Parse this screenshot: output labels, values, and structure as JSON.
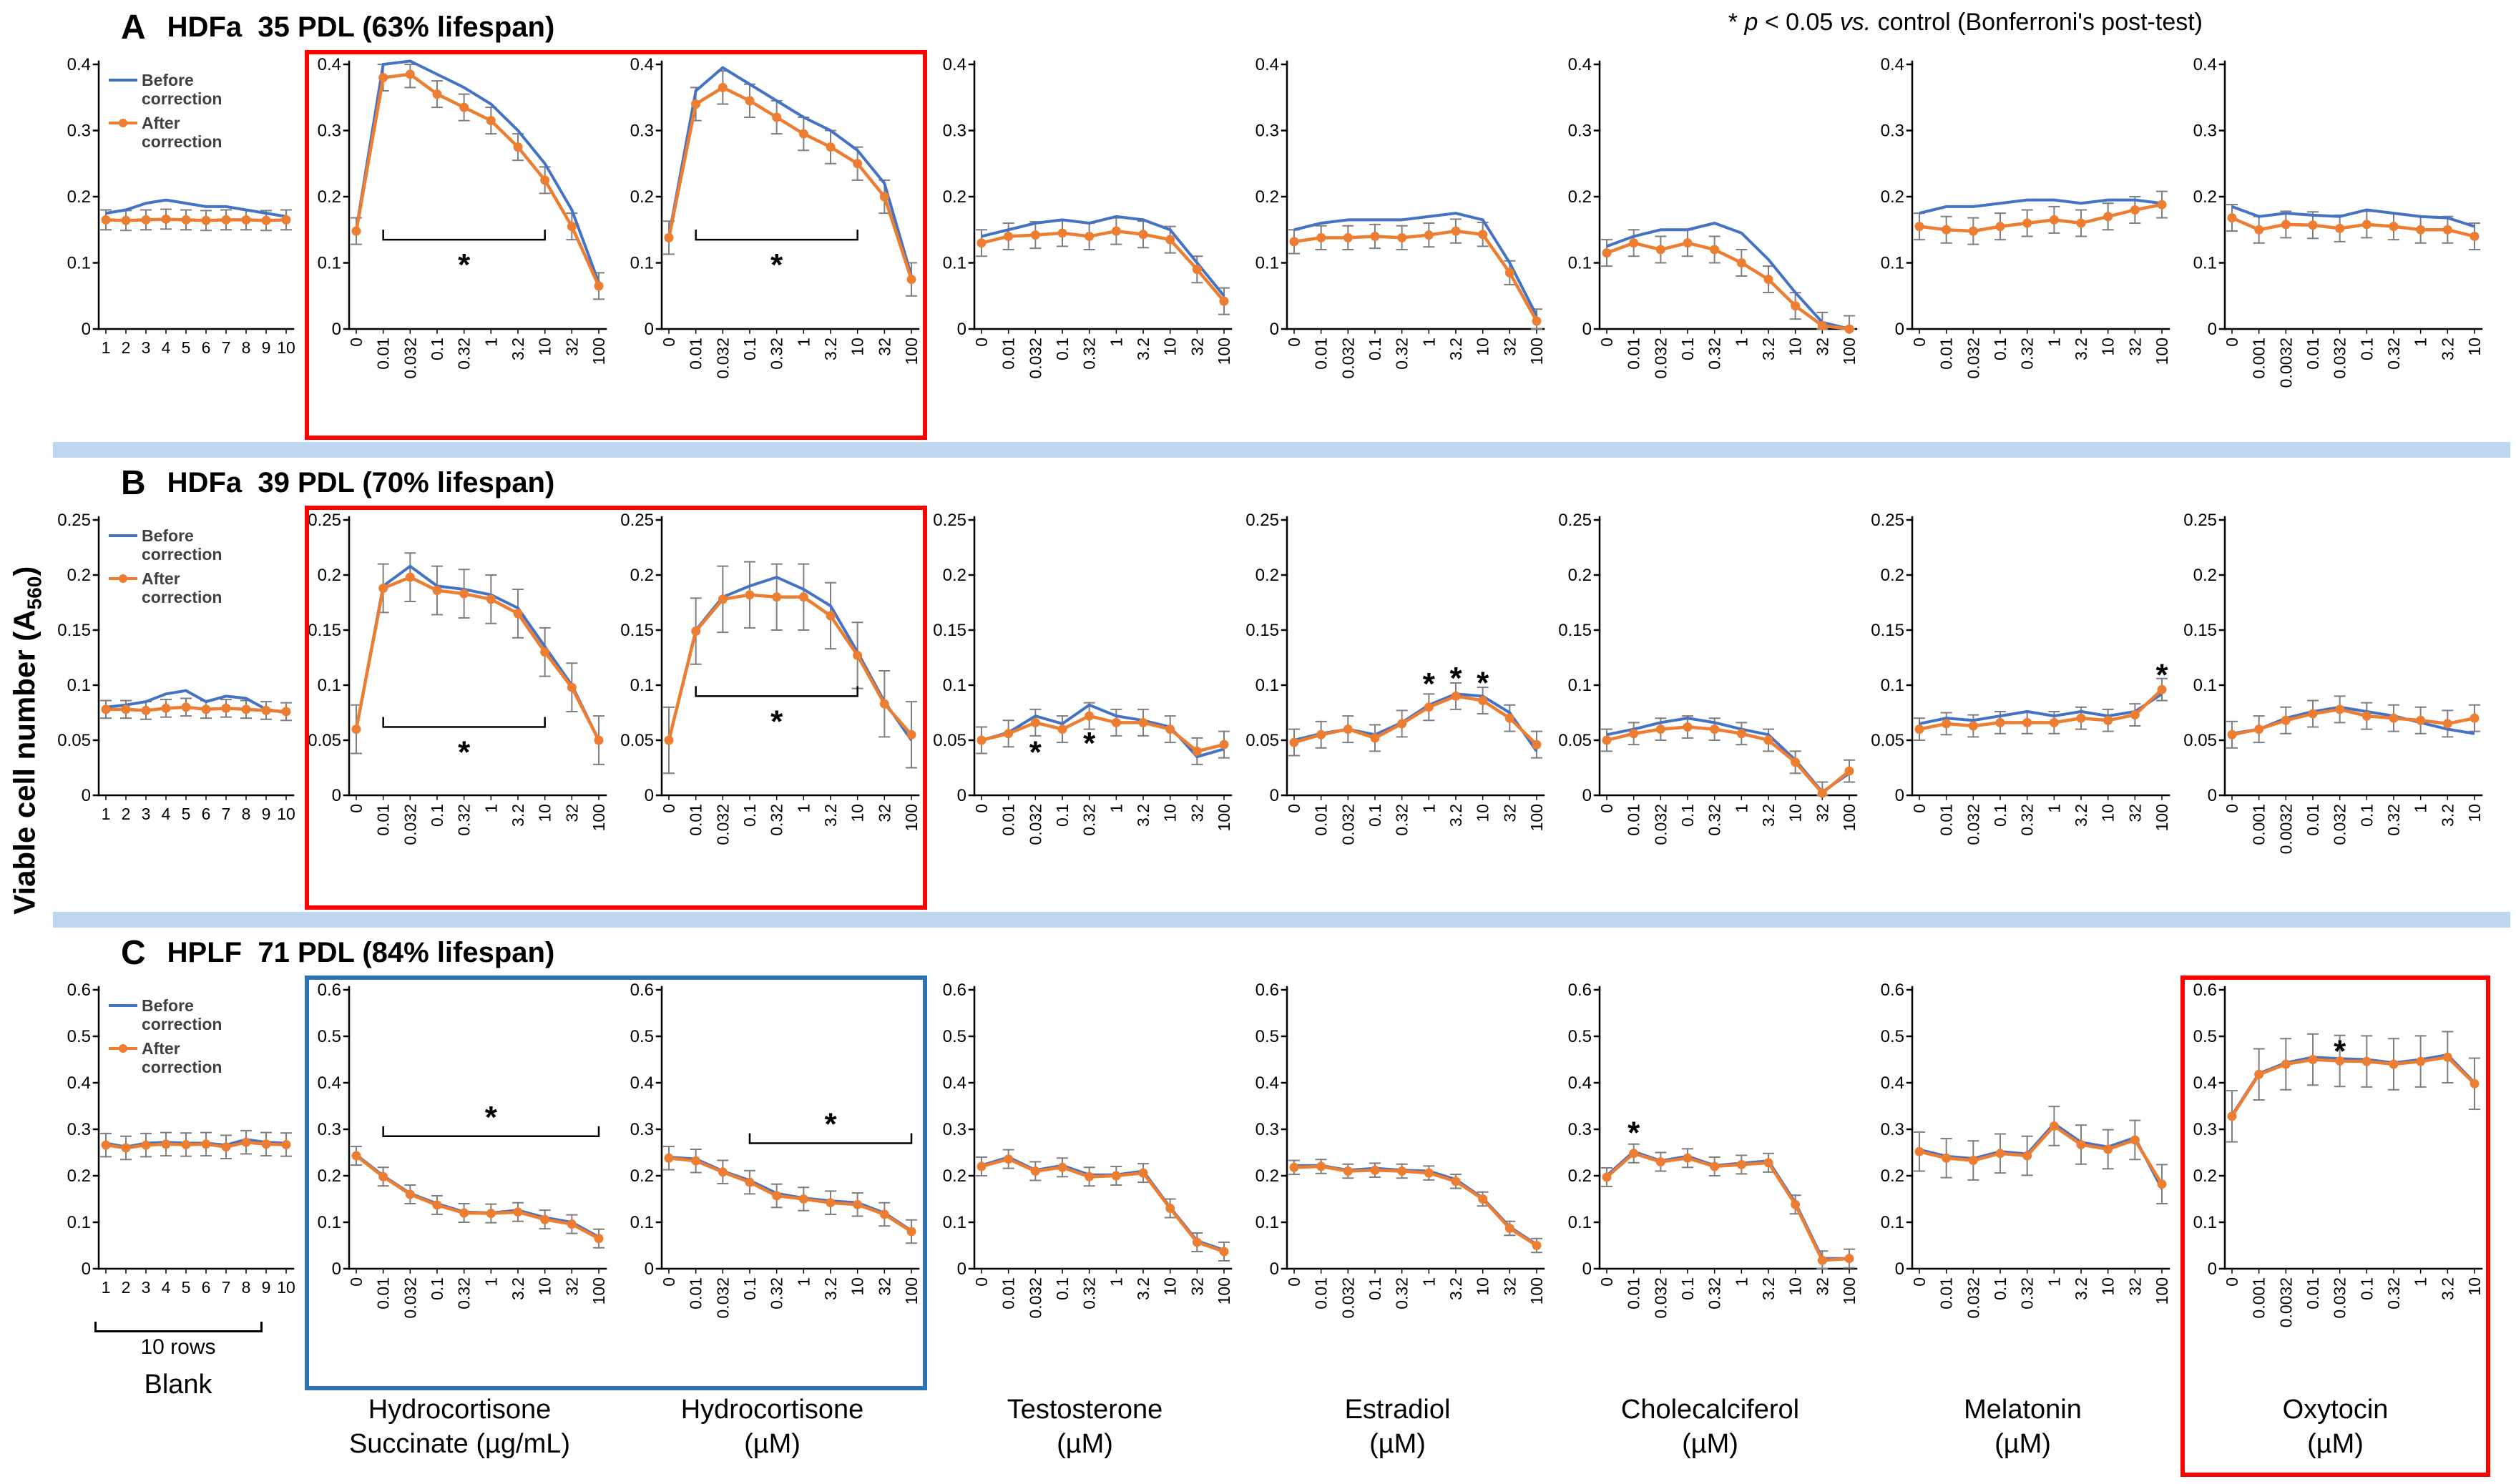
{
  "figure": {
    "annotation": {
      "star": "* ",
      "p": "p",
      "mid": " < 0.05 ",
      "vs": "vs.",
      "rest": " control (Bonferroni's post-test)"
    },
    "y_axis": {
      "label": "Viable cell number",
      "unit_pre": "(A",
      "unit_sub": "560",
      "unit_post": ")"
    },
    "legend": {
      "before_l1": "Before",
      "before_l2": "correction",
      "after_l1": "After",
      "after_l2": "correction"
    },
    "colors": {
      "before": "#4472C4",
      "after": "#ED7D31",
      "error": "#7F7F7F",
      "divider": "#BDD7EE",
      "box_red": "#FF0000",
      "box_blue": "#2E74B5"
    }
  },
  "chart_data": {
    "type": "line",
    "series_names": [
      "Before correction",
      "After correction"
    ],
    "x_axes": {
      "blank": [
        "1",
        "2",
        "3",
        "4",
        "5",
        "6",
        "7",
        "8",
        "9",
        "10"
      ],
      "conc": [
        "0",
        "0.01",
        "0.032",
        "0.1",
        "0.32",
        "1",
        "3.2",
        "10",
        "32",
        "100"
      ],
      "oxy": [
        "0",
        "0.001",
        "0.0032",
        "0.01",
        "0.032",
        "0.1",
        "0.32",
        "1",
        "3.2",
        "10"
      ]
    },
    "columns": [
      {
        "label1": "Blank",
        "label2": "",
        "rows_note": "10 rows"
      },
      {
        "label1": "Hydrocortisone",
        "label2": "Succinate (µg/mL)"
      },
      {
        "label1": "Hydrocortisone",
        "label2": "(µM)"
      },
      {
        "label1": "Testosterone",
        "label2": "(µM)"
      },
      {
        "label1": "Estradiol",
        "label2": "(µM)"
      },
      {
        "label1": "Cholecalciferol",
        "label2": "(µM)"
      },
      {
        "label1": "Melatonin",
        "label2": "(µM)"
      },
      {
        "label1": "Oxytocin",
        "label2": "(µM)"
      }
    ],
    "rows": [
      {
        "letter": "A",
        "title": "HDFa  35 PDL (63% lifespan)",
        "ylim": [
          0,
          0.4
        ],
        "yticks": [
          "0",
          "0.1",
          "0.2",
          "0.3",
          "0.4"
        ],
        "panels": [
          {
            "name": "blank",
            "x": "blank",
            "legend": true,
            "err": 0.015,
            "before": [
              0.175,
              0.18,
              0.19,
              0.195,
              0.19,
              0.185,
              0.185,
              0.18,
              0.175,
              0.17
            ],
            "after": [
              0.165,
              0.164,
              0.165,
              0.166,
              0.165,
              0.164,
              0.165,
              0.165,
              0.164,
              0.165
            ]
          },
          {
            "name": "hydrocortisone-succinate",
            "x": "conc",
            "err": 0.02,
            "before": [
              0.15,
              0.4,
              0.405,
              0.385,
              0.365,
              0.34,
              0.3,
              0.25,
              0.18,
              0.07
            ],
            "after": [
              0.148,
              0.38,
              0.385,
              0.355,
              0.335,
              0.315,
              0.275,
              0.225,
              0.155,
              0.065
            ],
            "bracket": {
              "from": 1,
              "to": 7,
              "v": 0.135,
              "star": "below"
            }
          },
          {
            "name": "hydrocortisone",
            "x": "conc",
            "err": 0.025,
            "before": [
              0.14,
              0.36,
              0.395,
              0.37,
              0.345,
              0.32,
              0.3,
              0.27,
              0.22,
              0.08
            ],
            "after": [
              0.138,
              0.34,
              0.365,
              0.345,
              0.32,
              0.295,
              0.275,
              0.25,
              0.2,
              0.075
            ],
            "bracket": {
              "from": 1,
              "to": 7,
              "v": 0.135,
              "star": "below"
            }
          },
          {
            "name": "testosterone",
            "x": "conc",
            "err": 0.02,
            "before": [
              0.14,
              0.15,
              0.16,
              0.165,
              0.16,
              0.17,
              0.165,
              0.15,
              0.1,
              0.05
            ],
            "after": [
              0.13,
              0.14,
              0.142,
              0.145,
              0.14,
              0.148,
              0.143,
              0.135,
              0.09,
              0.042
            ]
          },
          {
            "name": "estradiol",
            "x": "conc",
            "err": 0.018,
            "before": [
              0.15,
              0.16,
              0.165,
              0.165,
              0.165,
              0.17,
              0.175,
              0.165,
              0.1,
              0.02
            ],
            "after": [
              0.132,
              0.138,
              0.138,
              0.14,
              0.138,
              0.142,
              0.148,
              0.143,
              0.085,
              0.012
            ]
          },
          {
            "name": "cholecalciferol",
            "x": "conc",
            "err": 0.02,
            "before": [
              0.125,
              0.14,
              0.15,
              0.15,
              0.16,
              0.145,
              0.105,
              0.055,
              0.01,
              0
            ],
            "after": [
              0.115,
              0.13,
              0.12,
              0.13,
              0.12,
              0.1,
              0.075,
              0.035,
              0.005,
              0
            ]
          },
          {
            "name": "melatonin",
            "x": "conc",
            "err": 0.02,
            "before": [
              0.175,
              0.185,
              0.185,
              0.19,
              0.195,
              0.195,
              0.19,
              0.195,
              0.195,
              0.19
            ],
            "after": [
              0.155,
              0.15,
              0.148,
              0.155,
              0.16,
              0.165,
              0.16,
              0.17,
              0.18,
              0.188
            ]
          },
          {
            "name": "oxytocin",
            "x": "oxy",
            "err": 0.02,
            "before": [
              0.185,
              0.17,
              0.175,
              0.172,
              0.17,
              0.18,
              0.175,
              0.17,
              0.168,
              0.155
            ],
            "after": [
              0.168,
              0.15,
              0.158,
              0.157,
              0.152,
              0.158,
              0.155,
              0.15,
              0.15,
              0.14
            ]
          }
        ]
      },
      {
        "letter": "B",
        "title": "HDFa  39 PDL (70% lifespan)",
        "ylim": [
          0,
          0.25
        ],
        "yticks": [
          "0",
          "0.05",
          "0.1",
          "0.15",
          "0.2",
          "0.25"
        ],
        "panels": [
          {
            "name": "blank",
            "x": "blank",
            "legend": true,
            "err": 0.008,
            "before": [
              0.08,
              0.082,
              0.085,
              0.092,
              0.095,
              0.085,
              0.09,
              0.088,
              0.078,
              0.075
            ],
            "after": [
              0.078,
              0.078,
              0.077,
              0.079,
              0.08,
              0.078,
              0.079,
              0.078,
              0.077,
              0.076
            ]
          },
          {
            "name": "hydrocortisone-succinate",
            "x": "conc",
            "err": 0.022,
            "before": [
              0.06,
              0.19,
              0.208,
              0.19,
              0.187,
              0.182,
              0.17,
              0.135,
              0.1,
              0.05
            ],
            "after": [
              0.06,
              0.188,
              0.198,
              0.186,
              0.183,
              0.178,
              0.165,
              0.13,
              0.098,
              0.05
            ],
            "bracket": {
              "from": 1,
              "to": 7,
              "v": 0.062,
              "star": "below"
            }
          },
          {
            "name": "hydrocortisone",
            "x": "conc",
            "err": 0.03,
            "before": [
              0.05,
              0.15,
              0.18,
              0.19,
              0.198,
              0.187,
              0.172,
              0.13,
              0.085,
              0.05
            ],
            "after": [
              0.05,
              0.149,
              0.178,
              0.182,
              0.18,
              0.18,
              0.163,
              0.127,
              0.083,
              0.055
            ],
            "bracket": {
              "from": 1,
              "to": 7,
              "v": 0.09,
              "star": "below"
            }
          },
          {
            "name": "testosterone",
            "x": "conc",
            "err": 0.012,
            "before": [
              0.05,
              0.057,
              0.072,
              0.065,
              0.082,
              0.072,
              0.068,
              0.062,
              0.035,
              0.042
            ],
            "after": [
              0.05,
              0.056,
              0.066,
              0.06,
              0.072,
              0.066,
              0.066,
              0.06,
              0.04,
              0.046
            ],
            "stars": [
              {
                "i": 2,
                "v": 0.04
              },
              {
                "i": 4,
                "v": 0.048
              }
            ]
          },
          {
            "name": "estradiol",
            "x": "conc",
            "err": 0.012,
            "before": [
              0.05,
              0.056,
              0.06,
              0.055,
              0.066,
              0.082,
              0.092,
              0.09,
              0.075,
              0.04
            ],
            "after": [
              0.048,
              0.055,
              0.06,
              0.052,
              0.065,
              0.08,
              0.09,
              0.086,
              0.07,
              0.046
            ],
            "stars": [
              {
                "i": 5,
                "v": 0.102
              },
              {
                "i": 6,
                "v": 0.107
              },
              {
                "i": 7,
                "v": 0.103
              }
            ]
          },
          {
            "name": "cholecalciferol",
            "x": "conc",
            "err": 0.01,
            "before": [
              0.055,
              0.06,
              0.066,
              0.07,
              0.066,
              0.06,
              0.055,
              0.032,
              0.003,
              0.02
            ],
            "after": [
              0.05,
              0.056,
              0.06,
              0.062,
              0.06,
              0.056,
              0.05,
              0.03,
              0.002,
              0.022
            ]
          },
          {
            "name": "melatonin",
            "x": "conc",
            "err": 0.01,
            "before": [
              0.065,
              0.07,
              0.068,
              0.072,
              0.076,
              0.072,
              0.076,
              0.072,
              0.076,
              0.092
            ],
            "after": [
              0.06,
              0.065,
              0.063,
              0.066,
              0.066,
              0.066,
              0.07,
              0.068,
              0.073,
              0.096
            ],
            "stars": [
              {
                "i": 9,
                "v": 0.11
              }
            ]
          },
          {
            "name": "oxytocin",
            "x": "oxy",
            "err": 0.012,
            "before": [
              0.056,
              0.06,
              0.07,
              0.076,
              0.08,
              0.076,
              0.072,
              0.066,
              0.06,
              0.056
            ],
            "after": [
              0.055,
              0.06,
              0.068,
              0.074,
              0.078,
              0.072,
              0.07,
              0.068,
              0.065,
              0.07
            ]
          }
        ]
      },
      {
        "letter": "C",
        "title": "HPLF  71 PDL (84% lifespan)",
        "ylim": [
          0,
          0.6
        ],
        "yticks": [
          "0",
          "0.1",
          "0.2",
          "0.3",
          "0.4",
          "0.5",
          "0.6"
        ],
        "panels": [
          {
            "name": "blank",
            "x": "blank",
            "legend": true,
            "err": 0.025,
            "before": [
              0.27,
              0.262,
              0.27,
              0.272,
              0.27,
              0.27,
              0.266,
              0.278,
              0.272,
              0.27
            ],
            "after": [
              0.266,
              0.26,
              0.266,
              0.268,
              0.267,
              0.268,
              0.262,
              0.272,
              0.268,
              0.267
            ]
          },
          {
            "name": "hydrocortisone-succinate",
            "x": "conc",
            "err": 0.02,
            "before": [
              0.245,
              0.2,
              0.162,
              0.14,
              0.122,
              0.12,
              0.126,
              0.11,
              0.1,
              0.068
            ],
            "after": [
              0.243,
              0.198,
              0.16,
              0.137,
              0.12,
              0.119,
              0.122,
              0.106,
              0.096,
              0.065
            ],
            "bracket": {
              "from": 1,
              "to": 9,
              "v": 0.285,
              "star": "above"
            }
          },
          {
            "name": "hydrocortisone",
            "x": "conc",
            "err": 0.025,
            "before": [
              0.24,
              0.236,
              0.21,
              0.19,
              0.162,
              0.152,
              0.146,
              0.142,
              0.12,
              0.082
            ],
            "after": [
              0.238,
              0.232,
              0.208,
              0.186,
              0.157,
              0.15,
              0.142,
              0.138,
              0.117,
              0.08
            ],
            "bracket": {
              "from": 3,
              "to": 9,
              "v": 0.27,
              "star": "above"
            }
          },
          {
            "name": "testosterone",
            "x": "conc",
            "err": 0.02,
            "before": [
              0.222,
              0.24,
              0.212,
              0.222,
              0.202,
              0.202,
              0.21,
              0.132,
              0.06,
              0.04
            ],
            "after": [
              0.22,
              0.236,
              0.21,
              0.218,
              0.198,
              0.2,
              0.206,
              0.13,
              0.057,
              0.037
            ]
          },
          {
            "name": "estradiol",
            "x": "conc",
            "err": 0.015,
            "before": [
              0.222,
              0.222,
              0.212,
              0.216,
              0.212,
              0.21,
              0.192,
              0.152,
              0.09,
              0.052
            ],
            "after": [
              0.218,
              0.22,
              0.21,
              0.212,
              0.21,
              0.206,
              0.188,
              0.15,
              0.087,
              0.05
            ]
          },
          {
            "name": "cholecalciferol",
            "x": "conc",
            "err": 0.02,
            "before": [
              0.2,
              0.252,
              0.232,
              0.242,
              0.222,
              0.227,
              0.232,
              0.142,
              0.022,
              0.022
            ],
            "after": [
              0.197,
              0.248,
              0.23,
              0.238,
              0.22,
              0.224,
              0.228,
              0.138,
              0.018,
              0.022
            ],
            "stars": [
              {
                "i": 1,
                "v": 0.295
              }
            ]
          },
          {
            "name": "melatonin",
            "x": "conc",
            "err": 0.042,
            "before": [
              0.256,
              0.242,
              0.237,
              0.252,
              0.247,
              0.312,
              0.272,
              0.262,
              0.282,
              0.172
            ],
            "after": [
              0.252,
              0.238,
              0.233,
              0.248,
              0.243,
              0.307,
              0.267,
              0.257,
              0.277,
              0.182
            ]
          },
          {
            "name": "oxytocin",
            "x": "oxy",
            "err": 0.055,
            "before": [
              0.33,
              0.42,
              0.443,
              0.455,
              0.452,
              0.45,
              0.443,
              0.45,
              0.46,
              0.4
            ],
            "after": [
              0.328,
              0.418,
              0.44,
              0.45,
              0.447,
              0.446,
              0.44,
              0.446,
              0.455,
              0.398
            ],
            "stars": [
              {
                "i": 4,
                "v": 0.47
              }
            ]
          }
        ]
      }
    ]
  }
}
